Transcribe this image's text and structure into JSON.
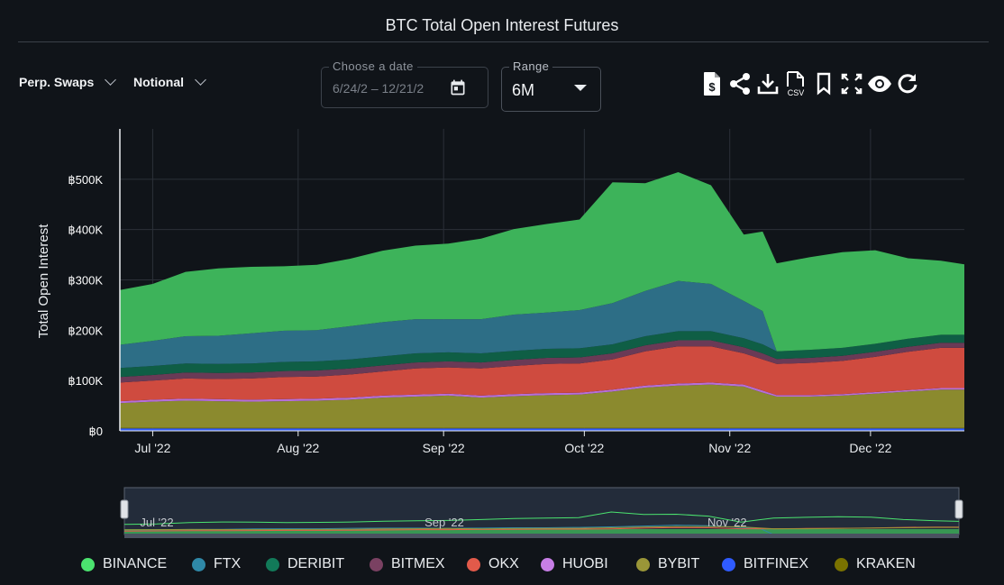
{
  "header": {
    "title": "BTC Total Open Interest Futures"
  },
  "controls": {
    "contract_type": "Perp. Swaps",
    "measure": "Notional",
    "date_label": "Choose a date",
    "date_value": "6/24/2 –  12/21/2",
    "range_label": "Range",
    "range_value": "6M"
  },
  "toolbar": {
    "icons": [
      "dollar-file-icon",
      "share-icon",
      "download-icon",
      "csv-file-icon",
      "bookmark-icon",
      "fullscreen-icon",
      "eye-icon",
      "refresh-icon"
    ],
    "csv_text": "CSV"
  },
  "chart_data": {
    "type": "area",
    "stacked": true,
    "title": "BTC Total Open Interest Futures",
    "ylabel": "Total Open Interest",
    "xlabel": "",
    "x_start": "2022-06-24",
    "x_end": "2022-12-21",
    "ylim": [
      0,
      600000
    ],
    "y_ticks": [
      0,
      100000,
      200000,
      300000,
      400000,
      500000
    ],
    "y_tick_labels": [
      "฿0",
      "฿100K",
      "฿200K",
      "฿300K",
      "฿400K",
      "฿500K"
    ],
    "x_ticks": [
      "2022-07-01",
      "2022-08-01",
      "2022-09-01",
      "2022-10-01",
      "2022-11-01",
      "2022-12-01"
    ],
    "x_tick_labels": [
      "Jul '22",
      "Aug '22",
      "Sep '22",
      "Oct '22",
      "Nov '22",
      "Dec '22"
    ],
    "grid": true,
    "legend_position": "bottom",
    "dates": [
      "2022-06-24",
      "2022-07-01",
      "2022-07-08",
      "2022-07-15",
      "2022-07-22",
      "2022-07-29",
      "2022-08-05",
      "2022-08-12",
      "2022-08-19",
      "2022-08-26",
      "2022-09-02",
      "2022-09-09",
      "2022-09-16",
      "2022-09-23",
      "2022-09-30",
      "2022-10-07",
      "2022-10-14",
      "2022-10-21",
      "2022-10-28",
      "2022-11-04",
      "2022-11-08",
      "2022-11-11",
      "2022-11-18",
      "2022-11-25",
      "2022-12-02",
      "2022-12-09",
      "2022-12-16",
      "2022-12-21"
    ],
    "series": [
      {
        "name": "BITFINEX",
        "color": "#2f5bff",
        "values": [
          5000,
          5000,
          5000,
          5000,
          5000,
          5000,
          5000,
          5000,
          5000,
          5000,
          5000,
          5000,
          5000,
          5000,
          5000,
          5000,
          5000,
          5000,
          5000,
          5000,
          5000,
          5000,
          5000,
          5000,
          5000,
          5000,
          5000,
          5000
        ]
      },
      {
        "name": "KRAKEN",
        "color": "#7a7200",
        "values": [
          1000,
          1000,
          1000,
          1000,
          1000,
          1000,
          1000,
          1000,
          1000,
          1000,
          1000,
          1000,
          1000,
          1000,
          1000,
          1000,
          1000,
          1000,
          1000,
          1000,
          1000,
          1000,
          1000,
          1000,
          1000,
          1000,
          1000,
          1000
        ]
      },
      {
        "name": "BYBIT",
        "color": "#8b8a2e",
        "values": [
          49000,
          52000,
          54000,
          53000,
          52000,
          53000,
          54000,
          56000,
          60000,
          62000,
          64000,
          60000,
          63000,
          65000,
          66000,
          72000,
          80000,
          84000,
          86000,
          82000,
          70000,
          62000,
          62000,
          64000,
          68000,
          72000,
          76000,
          76000
        ]
      },
      {
        "name": "HUOBI",
        "color": "#b56fd8",
        "values": [
          4000,
          4000,
          4000,
          4000,
          4000,
          4000,
          4000,
          4000,
          4000,
          4000,
          4000,
          4000,
          4000,
          4000,
          4000,
          4000,
          4000,
          4000,
          4000,
          4000,
          4000,
          3000,
          3000,
          3000,
          3000,
          3000,
          3000,
          3000
        ]
      },
      {
        "name": "OKX",
        "color": "#cf4b3f",
        "values": [
          37000,
          38000,
          40000,
          40000,
          42000,
          44000,
          44000,
          46000,
          48000,
          52000,
          52000,
          54000,
          56000,
          58000,
          58000,
          60000,
          68000,
          74000,
          72000,
          62000,
          62000,
          62000,
          64000,
          66000,
          70000,
          76000,
          80000,
          80000
        ]
      },
      {
        "name": "BITMEX",
        "color": "#6a3a56",
        "values": [
          11000,
          11000,
          12000,
          12000,
          12000,
          12000,
          12000,
          12000,
          12000,
          12000,
          12000,
          12000,
          12000,
          12000,
          12000,
          12000,
          12000,
          12000,
          12000,
          12000,
          12000,
          10000,
          10000,
          10000,
          10000,
          10000,
          10000,
          10000
        ]
      },
      {
        "name": "DERIBIT",
        "color": "#0f5e45",
        "values": [
          18000,
          18000,
          18000,
          18000,
          18000,
          18000,
          18000,
          18000,
          18000,
          18000,
          18000,
          18000,
          18000,
          18000,
          18000,
          18000,
          18000,
          18000,
          18000,
          18000,
          18000,
          15000,
          16000,
          16000,
          16000,
          16000,
          16000,
          16000
        ]
      },
      {
        "name": "FTX",
        "color": "#2d6e86",
        "values": [
          46000,
          50000,
          54000,
          56000,
          60000,
          62000,
          62000,
          66000,
          68000,
          68000,
          66000,
          68000,
          72000,
          72000,
          76000,
          82000,
          90000,
          100000,
          94000,
          74000,
          66000,
          0,
          0,
          0,
          0,
          0,
          0,
          0
        ]
      },
      {
        "name": "BINANCE",
        "color": "#3db35a",
        "values": [
          109000,
          113000,
          128000,
          134000,
          132000,
          128000,
          130000,
          134000,
          142000,
          146000,
          150000,
          160000,
          170000,
          176000,
          180000,
          240000,
          214000,
          216000,
          196000,
          132000,
          158000,
          175000,
          184000,
          190000,
          186000,
          160000,
          147000,
          140000
        ]
      }
    ],
    "legend_order": [
      "BINANCE",
      "FTX",
      "DERIBIT",
      "BITMEX",
      "OKX",
      "HUOBI",
      "BYBIT",
      "BITFINEX",
      "KRAKEN"
    ],
    "legend_colors": [
      "#4be36f",
      "#2f89a8",
      "#127a59",
      "#7a4162",
      "#e25a4a",
      "#c77ee6",
      "#9a9638",
      "#2f5bff",
      "#7a7200"
    ],
    "navigator": {
      "x_tick_labels": [
        "Jul '22",
        "Sep '22",
        "Nov '22"
      ],
      "x_ticks": [
        "2022-07-01",
        "2022-09-01",
        "2022-11-01"
      ]
    }
  }
}
